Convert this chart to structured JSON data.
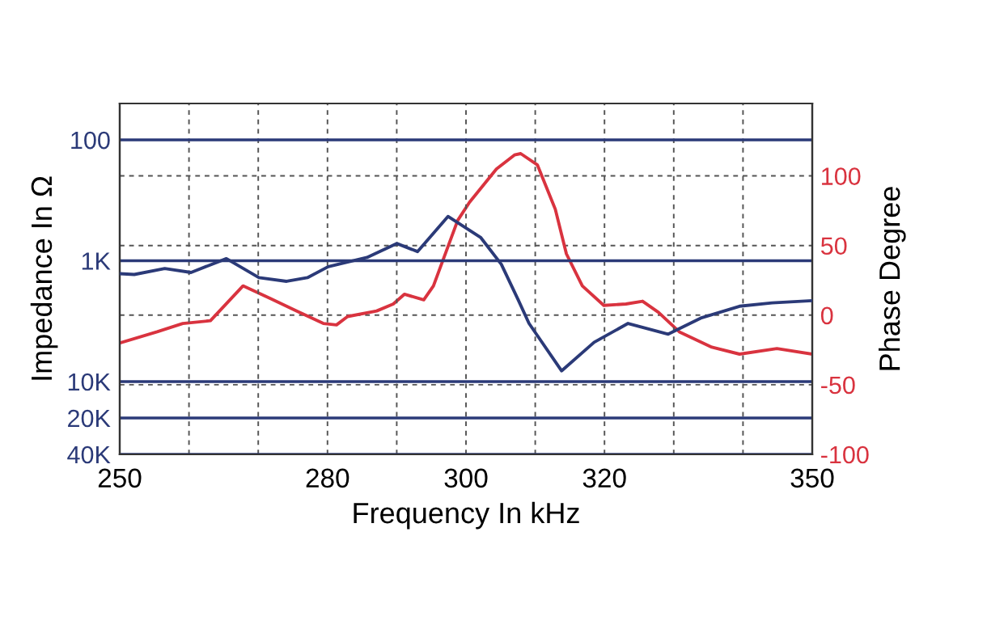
{
  "chart_data": {
    "type": "line",
    "xlabel": "Frequency In kHz",
    "ylabel": "Impedance In Ω",
    "y2label": "Phase Degree",
    "xlim": [
      250,
      350
    ],
    "xticks": [
      250,
      {
        "value": 260,
        "label": null
      },
      {
        "value": 270,
        "label": null
      },
      280,
      {
        "value": 290,
        "label": null
      },
      300,
      {
        "value": 310,
        "label": null
      },
      320,
      {
        "value": 330,
        "label": null
      },
      {
        "value": 340,
        "label": null
      },
      350
    ],
    "log": "y",
    "ylim": [
      40000,
      50
    ],
    "yticks": [
      {
        "value": 100,
        "label": "100"
      },
      {
        "value": 1000,
        "label": "1K"
      },
      {
        "value": 10000,
        "label": "10K"
      },
      {
        "value": 20000,
        "label": "20K"
      },
      {
        "value": 40000,
        "label": "40K"
      }
    ],
    "y2lim": [
      -100,
      152
    ],
    "y2ticks": [
      -100,
      -50,
      0,
      50,
      100
    ],
    "grid": true,
    "line_style": "solid",
    "series": [
      {
        "axis": "y",
        "color": "#2b3a78",
        "x": [
          250,
          252.1,
          256.5,
          260.3,
          265.4,
          270.1,
          274.1,
          277.1,
          280.1,
          285.7,
          290,
          293,
          297.4,
          302.1,
          305.1,
          307.5,
          309.1,
          313.8,
          318.5,
          323.4,
          329.2,
          333.9,
          339.5,
          344.2,
          350
        ],
        "values": [
          1280,
          1300,
          1160,
          1250,
          960,
          1380,
          1480,
          1380,
          1120,
          940,
          720,
          840,
          430,
          640,
          1070,
          2080,
          3300,
          8150,
          4730,
          3300,
          4050,
          2980,
          2380,
          2230,
          2140
        ]
      },
      {
        "axis": "y2",
        "color": "#d9333f",
        "x": [
          250,
          255.4,
          259.1,
          263.1,
          267.8,
          271.7,
          275.5,
          279.4,
          281.3,
          282.9,
          287.1,
          289.5,
          291.1,
          293.9,
          295.3,
          298.8,
          300.5,
          304.4,
          307,
          307.9,
          310.3,
          312.9,
          314.5,
          316.8,
          319.9,
          323.1,
          325.5,
          327.8,
          330.8,
          335.5,
          339.5,
          344.9,
          350
        ],
        "values": [
          -20,
          -12,
          -6,
          -4,
          21,
          12,
          3,
          -6,
          -7,
          -1,
          3,
          8,
          15,
          11,
          21,
          68,
          81,
          105,
          115,
          116,
          108,
          76,
          44,
          21,
          7,
          8,
          10,
          2,
          -12,
          -23,
          -28,
          -24,
          -28
        ]
      }
    ]
  }
}
